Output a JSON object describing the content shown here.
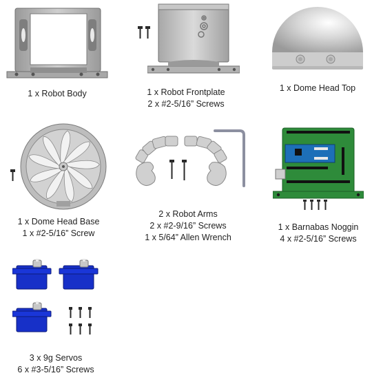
{
  "parts": [
    {
      "lines": [
        "1 x Robot Body"
      ]
    },
    {
      "lines": [
        "1 x Robot Frontplate",
        "2 x #2-5/16” Screws"
      ]
    },
    {
      "lines": [
        "1 x Dome Head Top"
      ]
    },
    {
      "lines": [
        "1 x Dome Head Base",
        "1 x #2-5/16” Screw"
      ]
    },
    {
      "lines": [
        "2 x Robot Arms",
        "2 x #2-9/16” Screws",
        "1 x 5/64” Allen Wrench"
      ]
    },
    {
      "lines": [
        "1 x Barnabas Noggin",
        "4 x #2-5/16” Screws"
      ]
    },
    {
      "lines": [
        "3 x 9g Servos",
        "6 x #3-5/16” Screws"
      ]
    }
  ],
  "colors": {
    "plastic": "#b9b9b9",
    "plastic_dark": "#8a8a8a",
    "pcb": "#2e8b3a",
    "arduino": "#1d6fb8",
    "servo": "#1730c8",
    "screw": "#2a2a2a"
  }
}
